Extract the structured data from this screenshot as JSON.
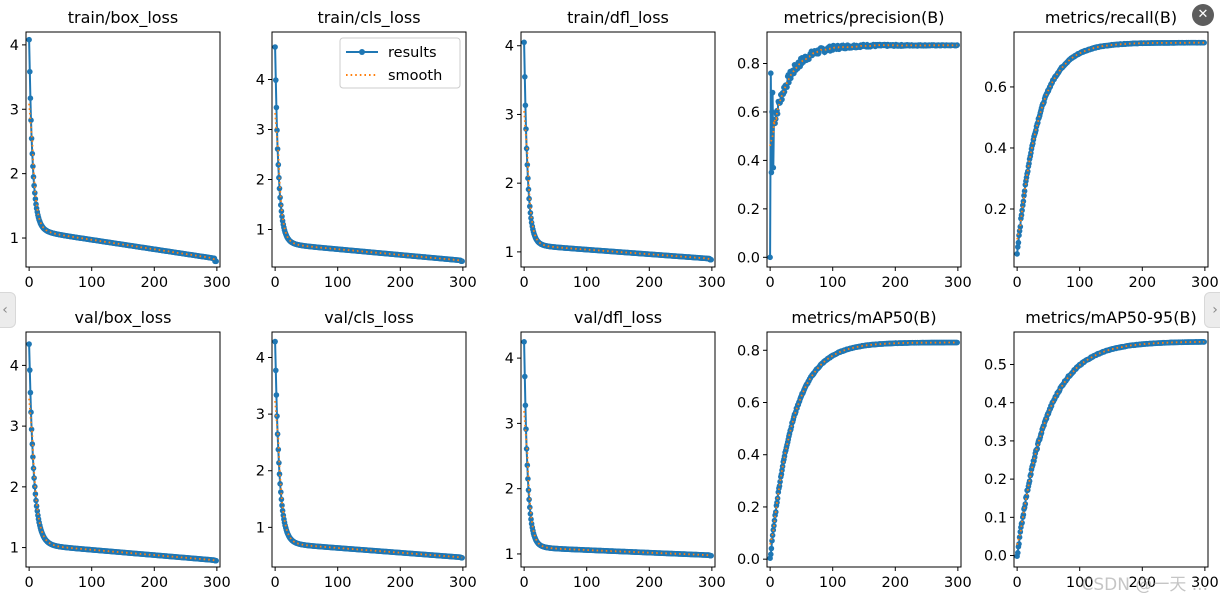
{
  "figure": {
    "legend": {
      "labels": [
        "results",
        "smooth"
      ],
      "location": "upper right of train/cls_loss panel"
    },
    "watermark": "CSDN @一天 ...",
    "controls": {
      "prev_icon": "‹",
      "next_icon": "›",
      "close_icon": "✕"
    }
  },
  "colors": {
    "results": "#1f77b4",
    "smooth": "#ff7f0e",
    "axis": "#000000"
  },
  "chart_data": [
    {
      "type": "line",
      "title": "train/box_loss",
      "xlim": [
        -5,
        305
      ],
      "ylim": [
        0.55,
        4.2
      ],
      "xticks": [
        0,
        100,
        200,
        300
      ],
      "yticks": [
        1,
        2,
        3,
        4
      ],
      "ytick_labels": [
        "1",
        "2",
        "3",
        "4"
      ],
      "curve": "loss",
      "params": {
        "start": 4.08,
        "mid": 1.35,
        "tail_a": 1.12,
        "tail_b": 0.68,
        "final": 0.62,
        "k": 0.12
      }
    },
    {
      "type": "line",
      "title": "train/cls_loss",
      "xlim": [
        -5,
        305
      ],
      "ylim": [
        0.25,
        4.95
      ],
      "xticks": [
        0,
        100,
        200,
        300
      ],
      "yticks": [
        1,
        2,
        3,
        4
      ],
      "ytick_labels": [
        "1",
        "2",
        "3",
        "4"
      ],
      "curve": "loss",
      "params": {
        "start": 4.65,
        "mid": 1.0,
        "tail_a": 0.72,
        "tail_b": 0.38,
        "final": 0.36,
        "k": 0.12
      },
      "legend": true
    },
    {
      "type": "line",
      "title": "train/dfl_loss",
      "xlim": [
        -5,
        305
      ],
      "ylim": [
        0.78,
        4.2
      ],
      "xticks": [
        0,
        100,
        200,
        300
      ],
      "yticks": [
        1,
        2,
        3,
        4
      ],
      "ytick_labels": [
        "1",
        "2",
        "3",
        "4"
      ],
      "curve": "loss",
      "params": {
        "start": 4.05,
        "mid": 1.25,
        "tail_a": 1.1,
        "tail_b": 0.9,
        "final": 0.88,
        "k": 0.12
      }
    },
    {
      "type": "line",
      "title": "metrics/precision(B)",
      "xlim": [
        -5,
        305
      ],
      "ylim": [
        -0.04,
        0.93
      ],
      "xticks": [
        0,
        100,
        200,
        300
      ],
      "yticks": [
        0,
        0.2,
        0.4,
        0.6,
        0.8
      ],
      "ytick_labels": [
        "0.0",
        "0.2",
        "0.4",
        "0.6",
        "0.8"
      ],
      "curve": "precision",
      "params": {
        "final": 0.875
      }
    },
    {
      "type": "line",
      "title": "metrics/recall(B)",
      "xlim": [
        -5,
        305
      ],
      "ylim": [
        0.01,
        0.78
      ],
      "xticks": [
        0,
        100,
        200,
        300
      ],
      "yticks": [
        0.2,
        0.4,
        0.6
      ],
      "ytick_labels": [
        "0.2",
        "0.4",
        "0.6"
      ],
      "curve": "metric",
      "params": {
        "start": 0.05,
        "final": 0.745,
        "k": 0.03,
        "peak_bump": 0.0
      }
    },
    {
      "type": "line",
      "title": "val/box_loss",
      "xlim": [
        -5,
        305
      ],
      "ylim": [
        0.68,
        4.55
      ],
      "xticks": [
        0,
        100,
        200,
        300
      ],
      "yticks": [
        1,
        2,
        3,
        4
      ],
      "ytick_labels": [
        "1",
        "2",
        "3",
        "4"
      ],
      "curve": "loss",
      "params": {
        "start": 4.35,
        "mid": 1.35,
        "tail_a": 1.05,
        "tail_b": 0.79,
        "final": 0.78,
        "k": 0.09
      }
    },
    {
      "type": "line",
      "title": "val/cls_loss",
      "xlim": [
        -5,
        305
      ],
      "ylim": [
        0.3,
        4.45
      ],
      "xticks": [
        0,
        100,
        200,
        300
      ],
      "yticks": [
        1,
        2,
        3,
        4
      ],
      "ytick_labels": [
        "1",
        "2",
        "3",
        "4"
      ],
      "curve": "loss",
      "params": {
        "start": 4.28,
        "mid": 1.0,
        "tail_a": 0.72,
        "tail_b": 0.47,
        "final": 0.46,
        "k": 0.1
      }
    },
    {
      "type": "line",
      "title": "val/dfl_loss",
      "xlim": [
        -5,
        305
      ],
      "ylim": [
        0.8,
        4.4
      ],
      "xticks": [
        0,
        100,
        200,
        300
      ],
      "yticks": [
        1,
        2,
        3,
        4
      ],
      "ytick_labels": [
        "1",
        "2",
        "3",
        "4"
      ],
      "curve": "loss",
      "params": {
        "start": 4.25,
        "mid": 1.3,
        "tail_a": 1.1,
        "tail_b": 0.98,
        "final": 0.97,
        "k": 0.12
      }
    },
    {
      "type": "line",
      "title": "metrics/mAP50(B)",
      "xlim": [
        -5,
        305
      ],
      "ylim": [
        -0.03,
        0.87
      ],
      "xticks": [
        0,
        100,
        200,
        300
      ],
      "yticks": [
        0,
        0.2,
        0.4,
        0.6,
        0.8
      ],
      "ytick_labels": [
        "0.0",
        "0.2",
        "0.4",
        "0.6",
        "0.8"
      ],
      "curve": "metric",
      "params": {
        "start": 0.0,
        "final": 0.83,
        "k": 0.028,
        "peak_bump": 0.0
      }
    },
    {
      "type": "line",
      "title": "metrics/mAP50-95(B)",
      "xlim": [
        -5,
        305
      ],
      "ylim": [
        -0.03,
        0.585
      ],
      "xticks": [
        0,
        100,
        200,
        300
      ],
      "yticks": [
        0,
        0.1,
        0.2,
        0.3,
        0.4,
        0.5
      ],
      "ytick_labels": [
        "0.0",
        "0.1",
        "0.2",
        "0.3",
        "0.4",
        "0.5"
      ],
      "curve": "metric",
      "params": {
        "start": 0.0,
        "final": 0.56,
        "k": 0.022,
        "peak_bump": 0.0
      }
    }
  ],
  "epochs": 300
}
